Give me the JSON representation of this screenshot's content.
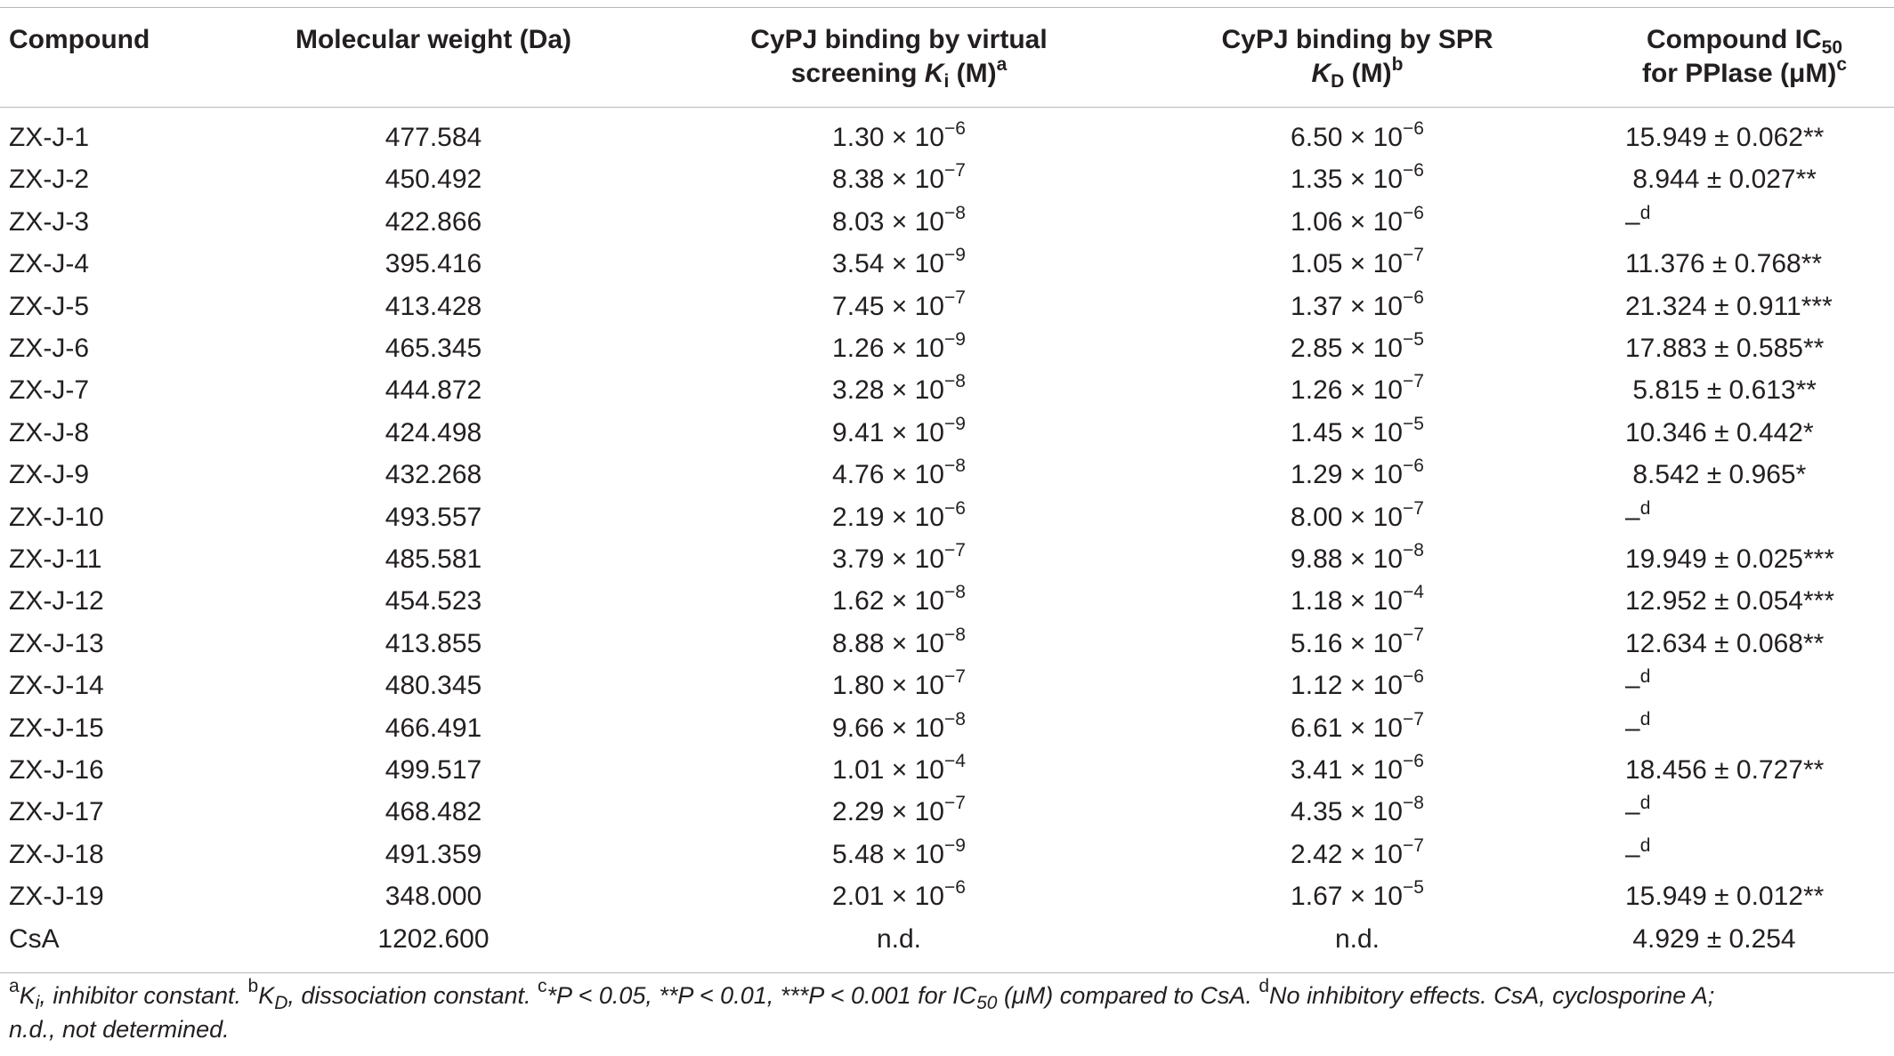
{
  "headers": {
    "compound": "Compound",
    "mw": "Molecular weight (Da)",
    "vs_line1": "CyPJ binding by virtual",
    "vs_line2_pre": "screening ",
    "vs_k": "K",
    "vs_k_sub": "i",
    "vs_unit": " (M)",
    "vs_sup": "a",
    "spr_line1": "CyPJ binding by SPR",
    "spr_k": "K",
    "spr_k_sub": "D",
    "spr_unit": " (M)",
    "spr_sup": "b",
    "ic_line1_pre": "Compound IC",
    "ic_line1_sub": "50",
    "ic_line2": "for PPIase (μM)",
    "ic_sup": "c"
  },
  "rows": [
    {
      "compound": "ZX-J-1",
      "mw": "477.584",
      "ki_m": "1.30 × 10",
      "ki_e": "−6",
      "kd_m": "6.50 × 10",
      "kd_e": "−6",
      "ic": "15.949 ± 0.062**",
      "ic_sup": ""
    },
    {
      "compound": "ZX-J-2",
      "mw": "450.492",
      "ki_m": "8.38 × 10",
      "ki_e": "−7",
      "kd_m": "1.35 × 10",
      "kd_e": "−6",
      "ic": " 8.944 ± 0.027**",
      "ic_sup": ""
    },
    {
      "compound": "ZX-J-3",
      "mw": "422.866",
      "ki_m": "8.03 × 10",
      "ki_e": "−8",
      "kd_m": "1.06 × 10",
      "kd_e": "−6",
      "ic": "–",
      "ic_sup": "d"
    },
    {
      "compound": "ZX-J-4",
      "mw": "395.416",
      "ki_m": "3.54 × 10",
      "ki_e": "−9",
      "kd_m": "1.05 × 10",
      "kd_e": "−7",
      "ic": "11.376 ± 0.768**",
      "ic_sup": ""
    },
    {
      "compound": "ZX-J-5",
      "mw": "413.428",
      "ki_m": "7.45 × 10",
      "ki_e": "−7",
      "kd_m": "1.37 × 10",
      "kd_e": "−6",
      "ic": "21.324 ± 0.911***",
      "ic_sup": ""
    },
    {
      "compound": "ZX-J-6",
      "mw": "465.345",
      "ki_m": "1.26 × 10",
      "ki_e": "−9",
      "kd_m": "2.85 × 10",
      "kd_e": "−5",
      "ic": "17.883 ± 0.585**",
      "ic_sup": ""
    },
    {
      "compound": "ZX-J-7",
      "mw": "444.872",
      "ki_m": "3.28 × 10",
      "ki_e": "−8",
      "kd_m": "1.26 × 10",
      "kd_e": "−7",
      "ic": " 5.815 ± 0.613**",
      "ic_sup": ""
    },
    {
      "compound": "ZX-J-8",
      "mw": "424.498",
      "ki_m": "9.41 × 10",
      "ki_e": "−9",
      "kd_m": "1.45 × 10",
      "kd_e": "−5",
      "ic": "10.346 ± 0.442*",
      "ic_sup": ""
    },
    {
      "compound": "ZX-J-9",
      "mw": "432.268",
      "ki_m": "4.76 × 10",
      "ki_e": "−8",
      "kd_m": "1.29 × 10",
      "kd_e": "−6",
      "ic": " 8.542 ± 0.965*",
      "ic_sup": ""
    },
    {
      "compound": "ZX-J-10",
      "mw": "493.557",
      "ki_m": "2.19 × 10",
      "ki_e": "−6",
      "kd_m": "8.00 × 10",
      "kd_e": "−7",
      "ic": "–",
      "ic_sup": "d"
    },
    {
      "compound": "ZX-J-11",
      "mw": "485.581",
      "ki_m": "3.79 × 10",
      "ki_e": "−7",
      "kd_m": "9.88 × 10",
      "kd_e": "−8",
      "ic": "19.949 ± 0.025***",
      "ic_sup": ""
    },
    {
      "compound": "ZX-J-12",
      "mw": "454.523",
      "ki_m": "1.62 × 10",
      "ki_e": "−8",
      "kd_m": "1.18 × 10",
      "kd_e": "−4",
      "ic": "12.952 ± 0.054***",
      "ic_sup": ""
    },
    {
      "compound": "ZX-J-13",
      "mw": "413.855",
      "ki_m": "8.88 × 10",
      "ki_e": "−8",
      "kd_m": "5.16 × 10",
      "kd_e": "−7",
      "ic": "12.634 ± 0.068**",
      "ic_sup": ""
    },
    {
      "compound": "ZX-J-14",
      "mw": "480.345",
      "ki_m": "1.80 × 10",
      "ki_e": "−7",
      "kd_m": "1.12 × 10",
      "kd_e": "−6",
      "ic": "–",
      "ic_sup": "d"
    },
    {
      "compound": "ZX-J-15",
      "mw": "466.491",
      "ki_m": "9.66 × 10",
      "ki_e": "−8",
      "kd_m": "6.61 × 10",
      "kd_e": "−7",
      "ic": "–",
      "ic_sup": "d"
    },
    {
      "compound": "ZX-J-16",
      "mw": "499.517",
      "ki_m": "1.01 × 10",
      "ki_e": "−4",
      "kd_m": "3.41 × 10",
      "kd_e": "−6",
      "ic": "18.456 ± 0.727**",
      "ic_sup": ""
    },
    {
      "compound": "ZX-J-17",
      "mw": "468.482",
      "ki_m": "2.29 × 10",
      "ki_e": "−7",
      "kd_m": "4.35 × 10",
      "kd_e": "−8",
      "ic": "–",
      "ic_sup": "d"
    },
    {
      "compound": "ZX-J-18",
      "mw": "491.359",
      "ki_m": "5.48 × 10",
      "ki_e": "−9",
      "kd_m": "2.42 × 10",
      "kd_e": "−7",
      "ic": "–",
      "ic_sup": "d"
    },
    {
      "compound": "ZX-J-19",
      "mw": "348.000",
      "ki_m": "2.01 × 10",
      "ki_e": "−6",
      "kd_m": "1.67 × 10",
      "kd_e": "−5",
      "ic": "15.949 ± 0.012**",
      "ic_sup": ""
    },
    {
      "compound": "CsA",
      "mw": "1202.600",
      "ki_m": "n.d.",
      "ki_e": "",
      "kd_m": "n.d.",
      "kd_e": "",
      "ic": " 4.929 ± 0.254",
      "ic_sup": ""
    }
  ],
  "footnote": {
    "a_sup": "a",
    "a_text": "K",
    "a_sub": "i",
    "a_rest": ", inhibitor constant. ",
    "b_sup": "b",
    "b_text": "K",
    "b_sub": "D",
    "b_rest": ", dissociation constant. ",
    "c_sup": "c",
    "c_text": "*P < 0.05, **P < 0.01, ***P < 0.001 for IC",
    "c_sub": "50",
    "c_mu": " (μM)",
    "c_rest": " compared to CsA. ",
    "d_sup": "d",
    "d_text": "No inhibitory effects. CsA, cyclosporine A;",
    "line2": "n.d., not determined."
  }
}
